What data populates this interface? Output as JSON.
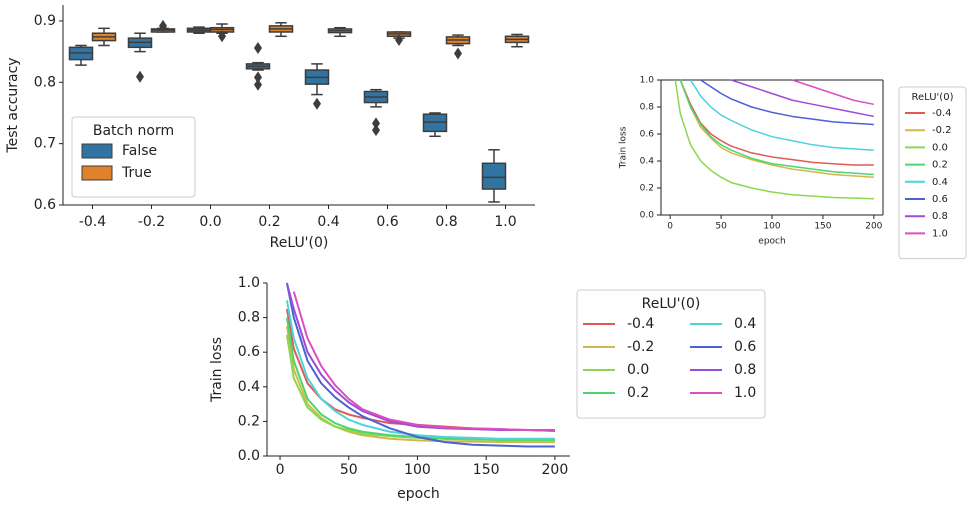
{
  "chart_data": [
    {
      "type": "box",
      "x_label": "ReLU'(0)",
      "y_label": "Test accuracy",
      "categories": [
        "-0.4",
        "-0.2",
        "0.0",
        "0.2",
        "0.4",
        "0.6",
        "0.8",
        "1.0"
      ],
      "ylim": [
        0.6,
        0.926
      ],
      "yticks": [
        0.6,
        0.7,
        0.8,
        0.9
      ],
      "legend_title": "Batch norm",
      "legend_position": "lower left",
      "series": [
        {
          "name": "False",
          "color": "#3274a1",
          "whislo": [
            0.828,
            0.85,
            0.88,
            0.82,
            0.78,
            0.76,
            0.712,
            0.605
          ],
          "q1": [
            0.837,
            0.857,
            0.882,
            0.822,
            0.797,
            0.767,
            0.72,
            0.626
          ],
          "median": [
            0.848,
            0.865,
            0.885,
            0.826,
            0.808,
            0.776,
            0.735,
            0.645
          ],
          "q3": [
            0.857,
            0.872,
            0.888,
            0.83,
            0.82,
            0.785,
            0.748,
            0.668
          ],
          "whishi": [
            0.86,
            0.88,
            0.89,
            0.832,
            0.83,
            0.788,
            0.75,
            0.69
          ],
          "outliers": [
            [],
            [
              0.809
            ],
            [],
            [
              0.856,
              0.808,
              0.796
            ],
            [
              0.765
            ],
            [
              0.733,
              0.722
            ],
            [],
            []
          ]
        },
        {
          "name": "True",
          "color": "#e1812c",
          "whislo": [
            0.86,
            0.882,
            0.88,
            0.875,
            0.875,
            0.872,
            0.86,
            0.858
          ],
          "q1": [
            0.868,
            0.882,
            0.882,
            0.882,
            0.881,
            0.875,
            0.863,
            0.865
          ],
          "median": [
            0.874,
            0.885,
            0.886,
            0.887,
            0.884,
            0.879,
            0.869,
            0.87
          ],
          "q3": [
            0.88,
            0.887,
            0.889,
            0.892,
            0.887,
            0.882,
            0.874,
            0.875
          ],
          "whishi": [
            0.888,
            0.888,
            0.895,
            0.897,
            0.889,
            0.882,
            0.877,
            0.878
          ],
          "outliers": [
            [],
            [
              0.892
            ],
            [
              0.875
            ],
            [],
            [],
            [
              0.869
            ],
            [
              0.847
            ],
            []
          ]
        }
      ]
    },
    {
      "type": "line",
      "x_label": "epoch",
      "y_label": "Train loss",
      "x": [
        5,
        10,
        20,
        30,
        40,
        50,
        60,
        80,
        100,
        120,
        140,
        160,
        180,
        200
      ],
      "xlim": [
        -9,
        209
      ],
      "xticks": [
        0,
        50,
        100,
        150,
        200
      ],
      "ylim": [
        0,
        1
      ],
      "yticks": [
        {
          "value": 0,
          "label": "0.0"
        },
        0.2,
        0.4,
        0.6,
        0.8,
        {
          "value": 1,
          "label": "1.0"
        }
      ],
      "legend_title": "ReLU'(0)",
      "legend_position": "outside right",
      "legend_columns": 1,
      "series": [
        {
          "name": "-0.4",
          "color": "#e05a55",
          "values": [
            null,
            1.0,
            0.82,
            0.68,
            0.6,
            0.55,
            0.51,
            0.46,
            0.43,
            0.41,
            0.39,
            0.38,
            0.37,
            0.37
          ]
        },
        {
          "name": "-0.2",
          "color": "#d2b84c",
          "values": [
            null,
            1.0,
            0.8,
            0.65,
            0.57,
            0.5,
            0.46,
            0.41,
            0.37,
            0.34,
            0.32,
            0.3,
            0.29,
            0.28
          ]
        },
        {
          "name": "0.0",
          "color": "#8cd650",
          "values": [
            1.0,
            0.75,
            0.52,
            0.4,
            0.33,
            0.28,
            0.24,
            0.2,
            0.17,
            0.15,
            0.14,
            0.13,
            0.125,
            0.12
          ]
        },
        {
          "name": "0.2",
          "color": "#4cd670",
          "values": [
            null,
            1.0,
            0.8,
            0.67,
            0.58,
            0.52,
            0.48,
            0.42,
            0.38,
            0.36,
            0.34,
            0.32,
            0.31,
            0.3
          ]
        },
        {
          "name": "0.4",
          "color": "#4dd3da",
          "values": [
            null,
            null,
            1.0,
            0.88,
            0.8,
            0.74,
            0.7,
            0.63,
            0.58,
            0.55,
            0.52,
            0.5,
            0.49,
            0.48
          ]
        },
        {
          "name": "0.6",
          "color": "#4a62d4",
          "values": [
            null,
            null,
            null,
            1.0,
            0.95,
            0.9,
            0.86,
            0.8,
            0.76,
            0.73,
            0.71,
            0.69,
            0.68,
            0.67
          ]
        },
        {
          "name": "0.8",
          "color": "#9c4cd8",
          "values": [
            null,
            null,
            null,
            null,
            null,
            null,
            1.0,
            0.95,
            0.9,
            0.85,
            0.82,
            0.79,
            0.76,
            0.73
          ]
        },
        {
          "name": "1.0",
          "color": "#db4fbf",
          "values": [
            null,
            null,
            null,
            null,
            null,
            null,
            null,
            null,
            null,
            1.0,
            0.95,
            0.9,
            0.85,
            0.82
          ]
        }
      ]
    },
    {
      "type": "line",
      "x_label": "epoch",
      "y_label": "Train loss",
      "x": [
        5,
        10,
        20,
        30,
        40,
        50,
        60,
        80,
        100,
        120,
        140,
        160,
        180,
        200
      ],
      "xlim": [
        -9.5,
        211
      ],
      "xticks": [
        0,
        50,
        100,
        150,
        200
      ],
      "ylim": [
        0,
        1
      ],
      "yticks": [
        {
          "value": 0,
          "label": "0.0"
        },
        0.2,
        0.4,
        0.6,
        0.8,
        {
          "value": 1,
          "label": "1.0"
        }
      ],
      "legend_title": "ReLU'(0)",
      "legend_position": "outside right",
      "legend_columns": 2,
      "series": [
        {
          "name": "-0.4",
          "color": "#e05a55",
          "values": [
            0.85,
            0.62,
            0.42,
            0.33,
            0.27,
            0.24,
            0.22,
            0.19,
            0.18,
            0.17,
            0.16,
            0.155,
            0.15,
            0.15
          ]
        },
        {
          "name": "-0.2",
          "color": "#d2b84c",
          "values": [
            0.75,
            0.5,
            0.3,
            0.22,
            0.17,
            0.14,
            0.12,
            0.1,
            0.09,
            0.085,
            0.083,
            0.081,
            0.08,
            0.08
          ]
        },
        {
          "name": "0.0",
          "color": "#8cd650",
          "values": [
            0.7,
            0.45,
            0.28,
            0.21,
            0.17,
            0.15,
            0.13,
            0.115,
            0.105,
            0.1,
            0.095,
            0.092,
            0.09,
            0.09
          ]
        },
        {
          "name": "0.2",
          "color": "#4cd670",
          "values": [
            0.8,
            0.55,
            0.33,
            0.24,
            0.19,
            0.16,
            0.14,
            0.12,
            0.11,
            0.1,
            0.1,
            0.095,
            0.095,
            0.095
          ]
        },
        {
          "name": "0.4",
          "color": "#4dd3da",
          "values": [
            0.9,
            0.68,
            0.45,
            0.33,
            0.26,
            0.21,
            0.18,
            0.14,
            0.12,
            0.11,
            0.105,
            0.1,
            0.1,
            0.1
          ]
        },
        {
          "name": "0.6",
          "color": "#4a62d4",
          "values": [
            1.0,
            0.8,
            0.55,
            0.42,
            0.34,
            0.28,
            0.23,
            0.16,
            0.11,
            0.08,
            0.065,
            0.06,
            0.055,
            0.055
          ]
        },
        {
          "name": "0.8",
          "color": "#9c4cd8",
          "values": [
            1.0,
            0.85,
            0.6,
            0.47,
            0.38,
            0.31,
            0.26,
            0.2,
            0.17,
            0.16,
            0.155,
            0.15,
            0.15,
            0.145
          ]
        },
        {
          "name": "1.0",
          "color": "#db4fbf",
          "values": [
            null,
            0.95,
            0.68,
            0.52,
            0.41,
            0.33,
            0.27,
            0.21,
            0.18,
            0.165,
            0.16,
            0.155,
            0.15,
            0.145
          ]
        }
      ]
    }
  ]
}
